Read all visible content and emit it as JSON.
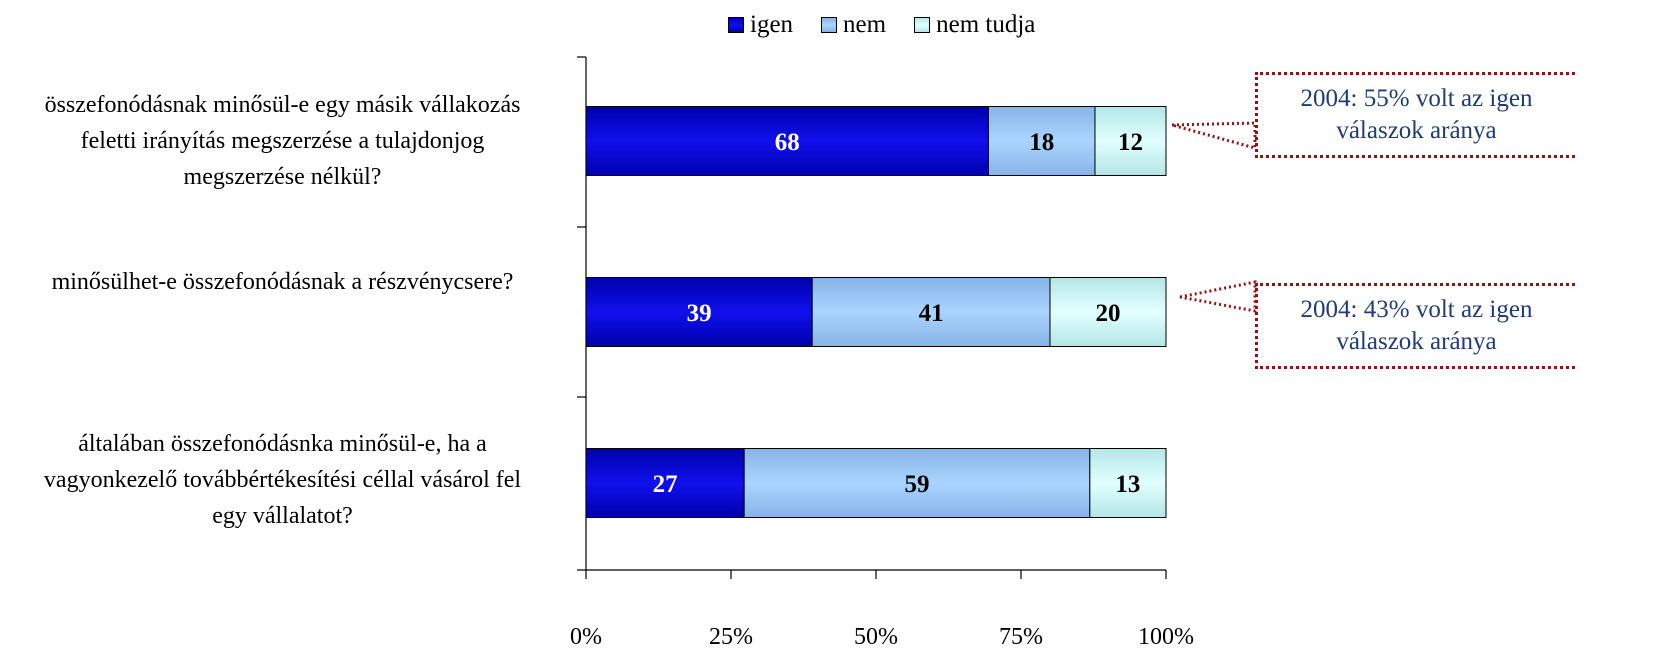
{
  "chart_data": {
    "type": "bar",
    "orientation": "horizontal",
    "stacked": "percent",
    "categories": [
      "összefonódásnak minősül-e egy másik vállakozás\nfeletti irányítás megszerzése a tulajdonjog\nmegszerzése nélkül?",
      "minősülhet-e összefonódásnak a részvénycsere?",
      "általában összefonódásnka minősül-e, ha a\nvagyonkezelő továbbértékesítési céllal vásárol fel\negy vállalatot?"
    ],
    "series": [
      {
        "name": "igen",
        "values": [
          68,
          39,
          27
        ],
        "color": "#0000cc"
      },
      {
        "name": "nem",
        "values": [
          18,
          41,
          59
        ],
        "color": "#99ccff"
      },
      {
        "name": "nem tudja",
        "values": [
          12,
          20,
          13
        ],
        "color": "#ccffff"
      }
    ],
    "x_ticks": [
      "0%",
      "25%",
      "50%",
      "75%",
      "100%"
    ],
    "xlim": [
      0,
      100
    ],
    "legend_position": "top",
    "grid": false,
    "annotations": [
      {
        "text": "2004: 55% volt az igen\nválaszok aránya",
        "category_index": 0
      },
      {
        "text": "2004: 43% volt az igen\nválaszok aránya",
        "category_index": 1
      }
    ]
  }
}
